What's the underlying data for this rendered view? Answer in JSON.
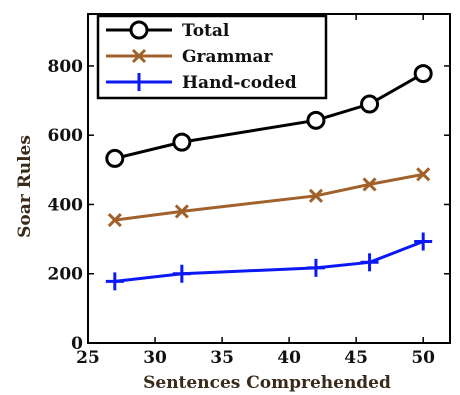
{
  "chart_data": {
    "type": "line",
    "xlabel": "Sentences Comprehended",
    "ylabel": "Soar Rules",
    "xlim": [
      25,
      52
    ],
    "ylim": [
      0,
      950
    ],
    "xticks": [
      "25",
      "30",
      "35",
      "40",
      "45",
      "50"
    ],
    "yticks": [
      "0",
      "200",
      "400",
      "600",
      "800"
    ],
    "legend_position": "top-left",
    "grid": false,
    "x": [
      27,
      32,
      42,
      46,
      50
    ],
    "series": [
      {
        "name": "Total",
        "values": [
          533,
          580,
          643,
          690,
          778
        ],
        "color": "#000000",
        "marker": "circle"
      },
      {
        "name": "Grammar",
        "values": [
          355,
          380,
          425,
          458,
          487
        ],
        "color": "#a0612a",
        "marker": "x"
      },
      {
        "name": "Hand-coded",
        "values": [
          178,
          200,
          217,
          233,
          293
        ],
        "color": "#0b19f5",
        "marker": "plus"
      }
    ]
  }
}
